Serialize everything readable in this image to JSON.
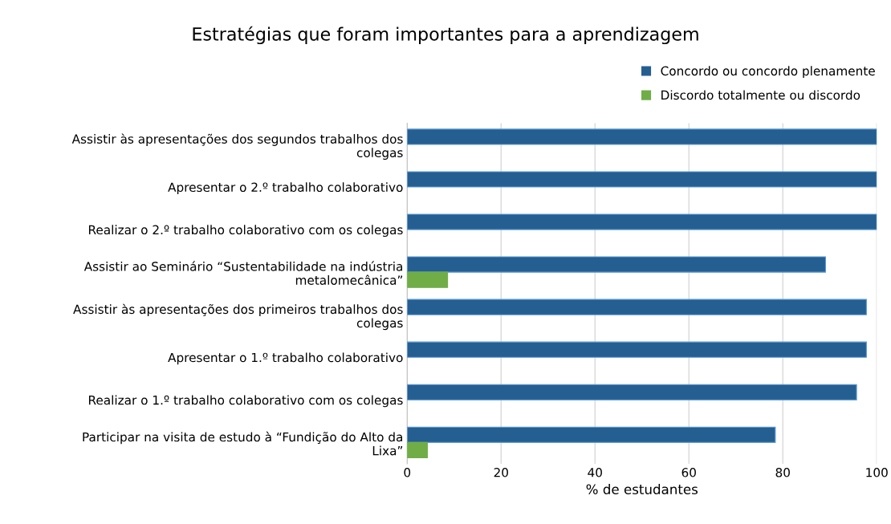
{
  "chart_data": {
    "type": "bar",
    "orientation": "horizontal",
    "title": "Estratégias que foram importantes para a aprendizagem",
    "xlabel": "% de estudantes",
    "categories": [
      "Assistir às apresentações dos segundos trabalhos dos\ncolegas",
      "Apresentar o 2.º trabalho colaborativo",
      "Realizar o 2.º trabalho colaborativo com os colegas",
      "Assistir ao Seminário “Sustentabilidade na indústria\nmetalomecânica”",
      "Assistir às apresentações dos primeiros trabalhos dos\ncolegas",
      "Apresentar o 1.º trabalho colaborativo",
      "Realizar o 1.º trabalho colaborativo com os colegas",
      "Participar na visita de estudo à “Fundição do Alto da\nLixa”"
    ],
    "series": [
      {
        "name": "Concordo ou concordo plenamente",
        "color": "#255e91",
        "values": [
          100,
          100,
          100,
          89.1,
          97.8,
          97.8,
          95.7,
          78.4
        ]
      },
      {
        "name": "Discordo totalmente ou discordo",
        "color": "#70ad47",
        "values": [
          null,
          null,
          null,
          8.6,
          null,
          null,
          null,
          4.3
        ]
      }
    ],
    "xlim": [
      0,
      100
    ],
    "xticks": [
      0,
      20,
      40,
      60,
      80,
      100
    ],
    "grid": "x",
    "legend": "top right"
  }
}
